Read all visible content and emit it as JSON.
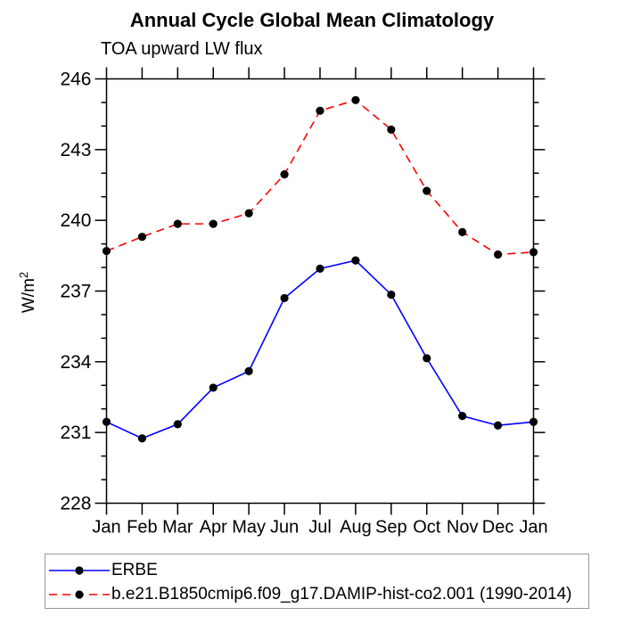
{
  "title": "Annual Cycle Global Mean Climatology",
  "subtitle": "TOA upward LW flux",
  "chart_data": {
    "type": "line",
    "categories": [
      "Jan",
      "Feb",
      "Mar",
      "Apr",
      "May",
      "Jun",
      "Jul",
      "Aug",
      "Sep",
      "Oct",
      "Nov",
      "Dec",
      "Jan"
    ],
    "series": [
      {
        "name": "ERBE",
        "color": "#0000ff",
        "line_style": "solid",
        "marker": "filled-circle",
        "marker_color": "#000000",
        "values": [
          231.45,
          230.75,
          231.35,
          232.9,
          233.6,
          236.7,
          237.95,
          238.3,
          236.85,
          234.15,
          231.7,
          231.3,
          231.45
        ]
      },
      {
        "name": "b.e21.B1850cmip6.f09_g17.DAMIP-hist-co2.001 (1990-2014)",
        "color": "#ff0000",
        "line_style": "dashed",
        "marker": "filled-circle",
        "marker_color": "#000000",
        "values": [
          238.7,
          239.3,
          239.85,
          239.85,
          240.3,
          241.95,
          244.65,
          245.1,
          243.85,
          241.25,
          239.5,
          238.55,
          238.65
        ]
      }
    ],
    "xlabel": "",
    "ylabel": "W/m",
    "ylabel_exponent": "2",
    "ylim": [
      228,
      246
    ],
    "y_major_ticks": [
      246,
      243,
      240,
      237,
      234,
      231,
      228
    ],
    "y_minor_step": 1,
    "grid": "off",
    "legend_position": "bottom-left",
    "axis_color": "#000000"
  }
}
